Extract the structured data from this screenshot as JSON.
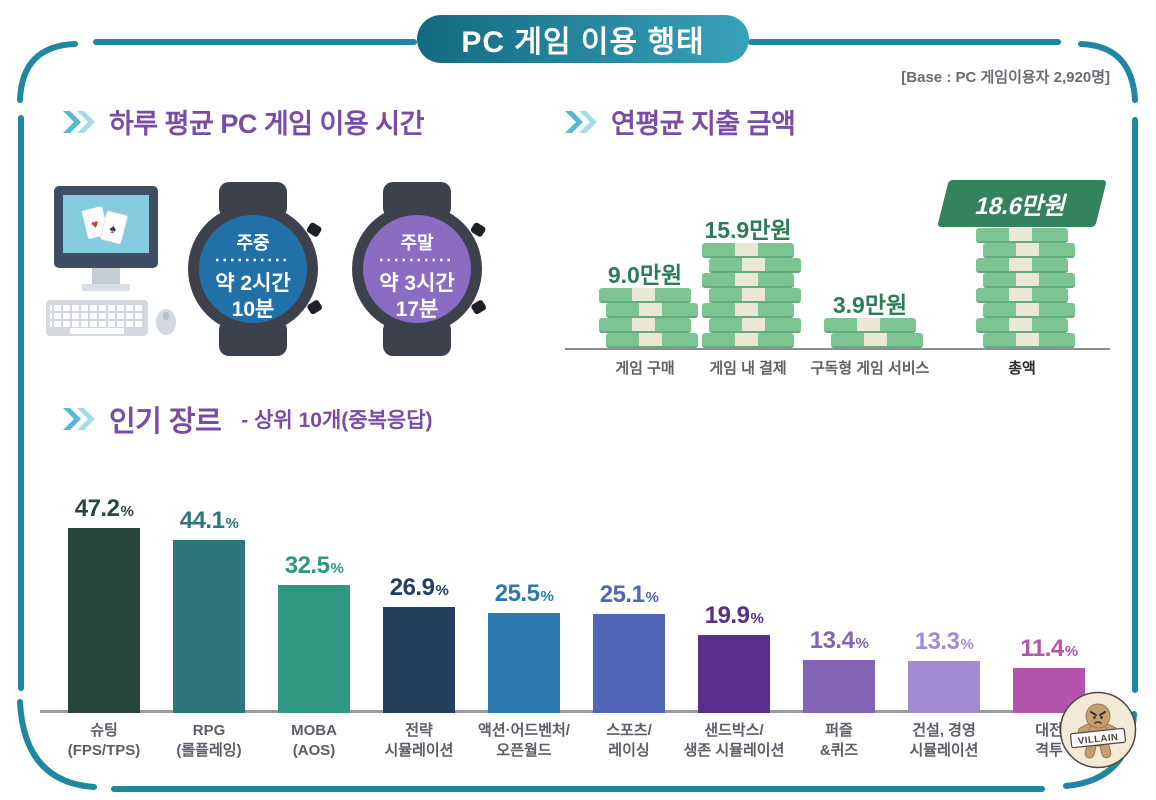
{
  "title": "PC 게임 이용 행태",
  "base_note": "[Base : PC 게임이용자 2,920명]",
  "colors": {
    "frame_teal": "#1f87a0",
    "heading_purple": "#7a4ca6",
    "money_green": "#7cc492",
    "money_cream": "#ece6d4",
    "money_value_green": "#2c7c55",
    "total_badge_green": "#35825f",
    "weekday_watch_face": "#2270a8",
    "weekend_watch_face": "#8a6cc2"
  },
  "time_section": {
    "heading": "하루 평균 PC 게임 이용 시간",
    "watches": [
      {
        "period": "주중",
        "duration_line1": "약 2시간",
        "duration_line2": "10분",
        "face_color": "#2270a8"
      },
      {
        "period": "주말",
        "duration_line1": "약 3시간",
        "duration_line2": "17분",
        "face_color": "#8a6cc2"
      }
    ]
  },
  "spending_section": {
    "heading": "연평균 지출 금액"
  },
  "genre_section": {
    "heading": "인기 장르",
    "subheading": "- 상위 10개(중복응답)"
  },
  "watermark": "VILLAIN",
  "chart_data": [
    {
      "type": "bar",
      "style": "money-stack-pictogram",
      "title": "연평균 지출 금액",
      "categories": [
        "게임 구매",
        "게임 내 결제",
        "구독형 게임 서비스",
        "총액"
      ],
      "values": [
        9.0,
        15.9,
        3.9,
        18.6
      ],
      "unit": "만원",
      "value_labels": [
        "9.0만원",
        "15.9만원",
        "3.9만원",
        "18.6만원"
      ],
      "bill_counts": [
        4,
        7,
        2,
        8
      ],
      "total_index": 3
    },
    {
      "type": "bar",
      "title": "인기 장르 - 상위 10개(중복응답)",
      "unit": "%",
      "ylim": [
        0,
        50
      ],
      "categories": [
        [
          "슈팅",
          "(FPS/TPS)"
        ],
        [
          "RPG",
          "(롤플레잉)"
        ],
        [
          "MOBA",
          "(AOS)"
        ],
        [
          "전략",
          "시뮬레이션"
        ],
        [
          "액션·어드벤처/",
          "오픈월드"
        ],
        [
          "스포츠/",
          "레이싱"
        ],
        [
          "샌드박스/",
          "생존 시뮬레이션"
        ],
        [
          "퍼즐",
          "&퀴즈"
        ],
        [
          "건설, 경영",
          "시뮬레이션"
        ],
        [
          "대전",
          "격투"
        ]
      ],
      "values": [
        47.2,
        44.1,
        32.5,
        26.9,
        25.5,
        25.1,
        19.9,
        13.4,
        13.3,
        11.4
      ],
      "bar_colors": [
        "#27463c",
        "#2d767c",
        "#2f9782",
        "#25405f",
        "#2b79ae",
        "#5166b6",
        "#5b2d8d",
        "#8165b4",
        "#a28bd0",
        "#b455ad"
      ]
    }
  ]
}
